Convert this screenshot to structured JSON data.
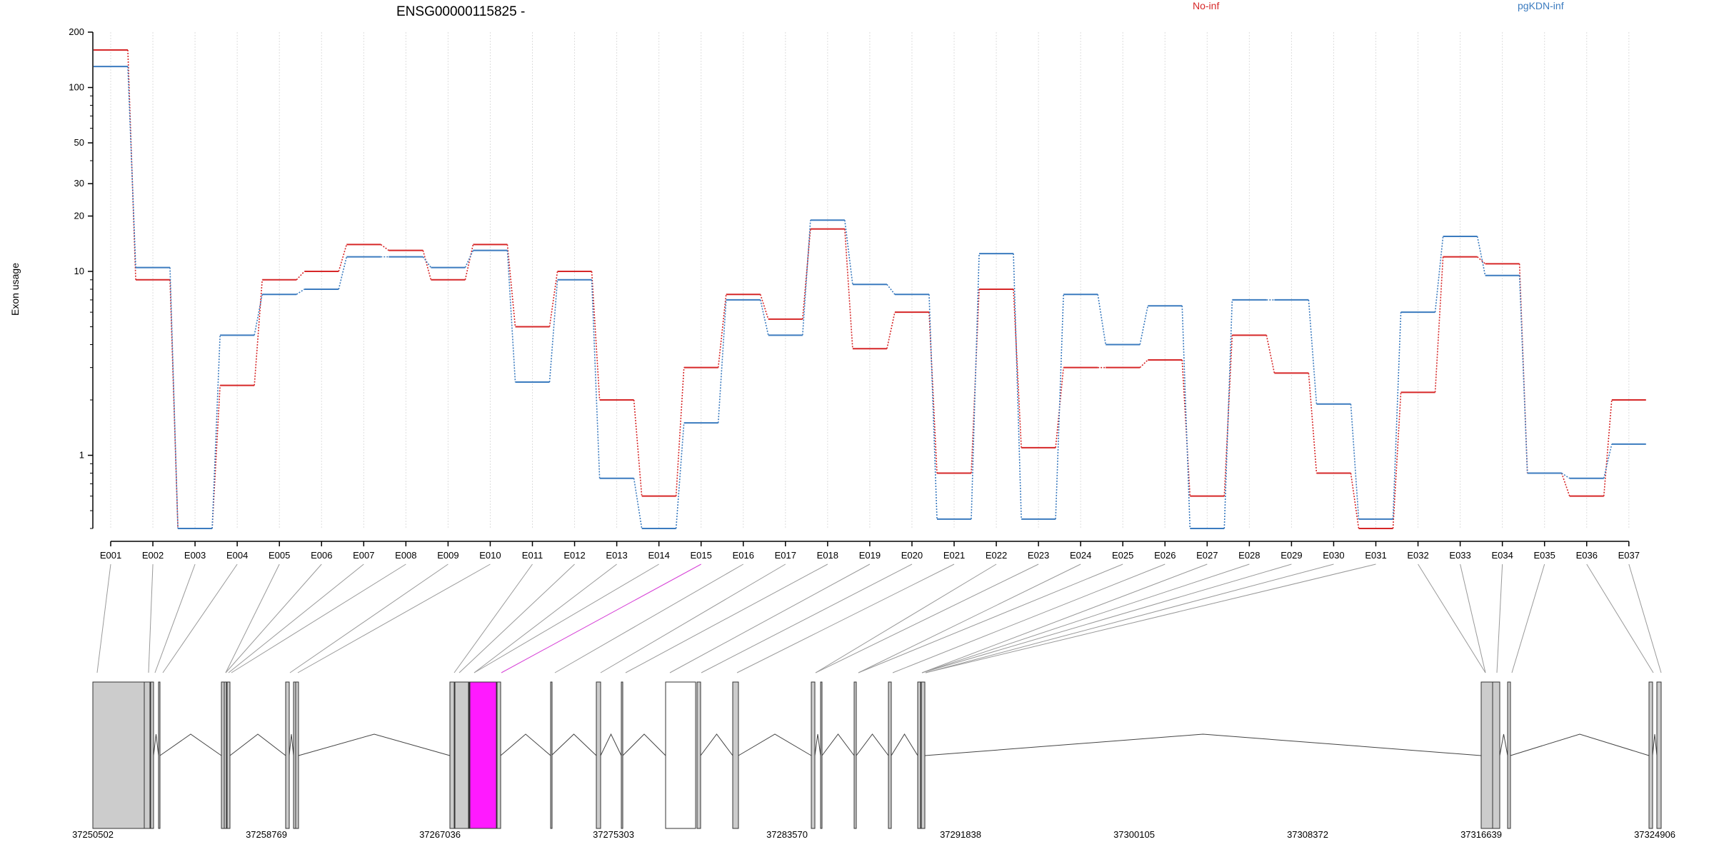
{
  "chart_data": {
    "type": "line",
    "title": "ENSG00000115825 -",
    "ylabel": "Exon usage",
    "xlabel": "",
    "yscale": "log",
    "ylim": [
      0.4,
      200
    ],
    "yticks": [
      1,
      10,
      20,
      30,
      50,
      100,
      200
    ],
    "grid": "vertical",
    "legend_placement": "top",
    "categories": [
      "E001",
      "E002",
      "E003",
      "E004",
      "E005",
      "E006",
      "E007",
      "E008",
      "E009",
      "E010",
      "E011",
      "E012",
      "E013",
      "E014",
      "E015",
      "E016",
      "E017",
      "E018",
      "E019",
      "E020",
      "E021",
      "E022",
      "E023",
      "E024",
      "E025",
      "E026",
      "E027",
      "E028",
      "E029",
      "E030",
      "E031",
      "E032",
      "E033",
      "E034",
      "E035",
      "E036",
      "E037"
    ],
    "highlight_exon": "E015",
    "series": [
      {
        "name": "No-inf",
        "color": "#d62728",
        "values": [
          160,
          9,
          0.4,
          2.4,
          9,
          10,
          14,
          13,
          9,
          14,
          5,
          10,
          2,
          0.6,
          3,
          7.5,
          5.5,
          17,
          3.8,
          6,
          0.8,
          8,
          1.1,
          3,
          3,
          3.3,
          0.6,
          4.5,
          2.8,
          0.8,
          0.4,
          2.2,
          12,
          11,
          0.8,
          0.6,
          2
        ],
        "values_note": ""
      },
      {
        "name": "pgKDN-inf",
        "color": "#3b7bbf",
        "values": [
          130,
          10.5,
          0.4,
          4.5,
          7.5,
          8,
          12,
          12,
          10.5,
          13,
          2.5,
          9,
          0.75,
          0.4,
          1.5,
          7,
          4.5,
          19,
          8.5,
          7.5,
          0.45,
          12.5,
          0.45,
          7.5,
          4,
          6.5,
          0.4,
          7,
          7,
          1.9,
          0.45,
          6,
          15.5,
          9.5,
          0.8,
          0.75,
          1.15
        ]
      }
    ],
    "gene_model": {
      "coordinates": [
        "37250502",
        "37258769",
        "37267036",
        "37275303",
        "37283570",
        "37291838",
        "37300105",
        "37308372",
        "37316639",
        "37324906"
      ],
      "exon_fill": "#cccccc",
      "highlight_fill": "#ff1aff"
    }
  }
}
